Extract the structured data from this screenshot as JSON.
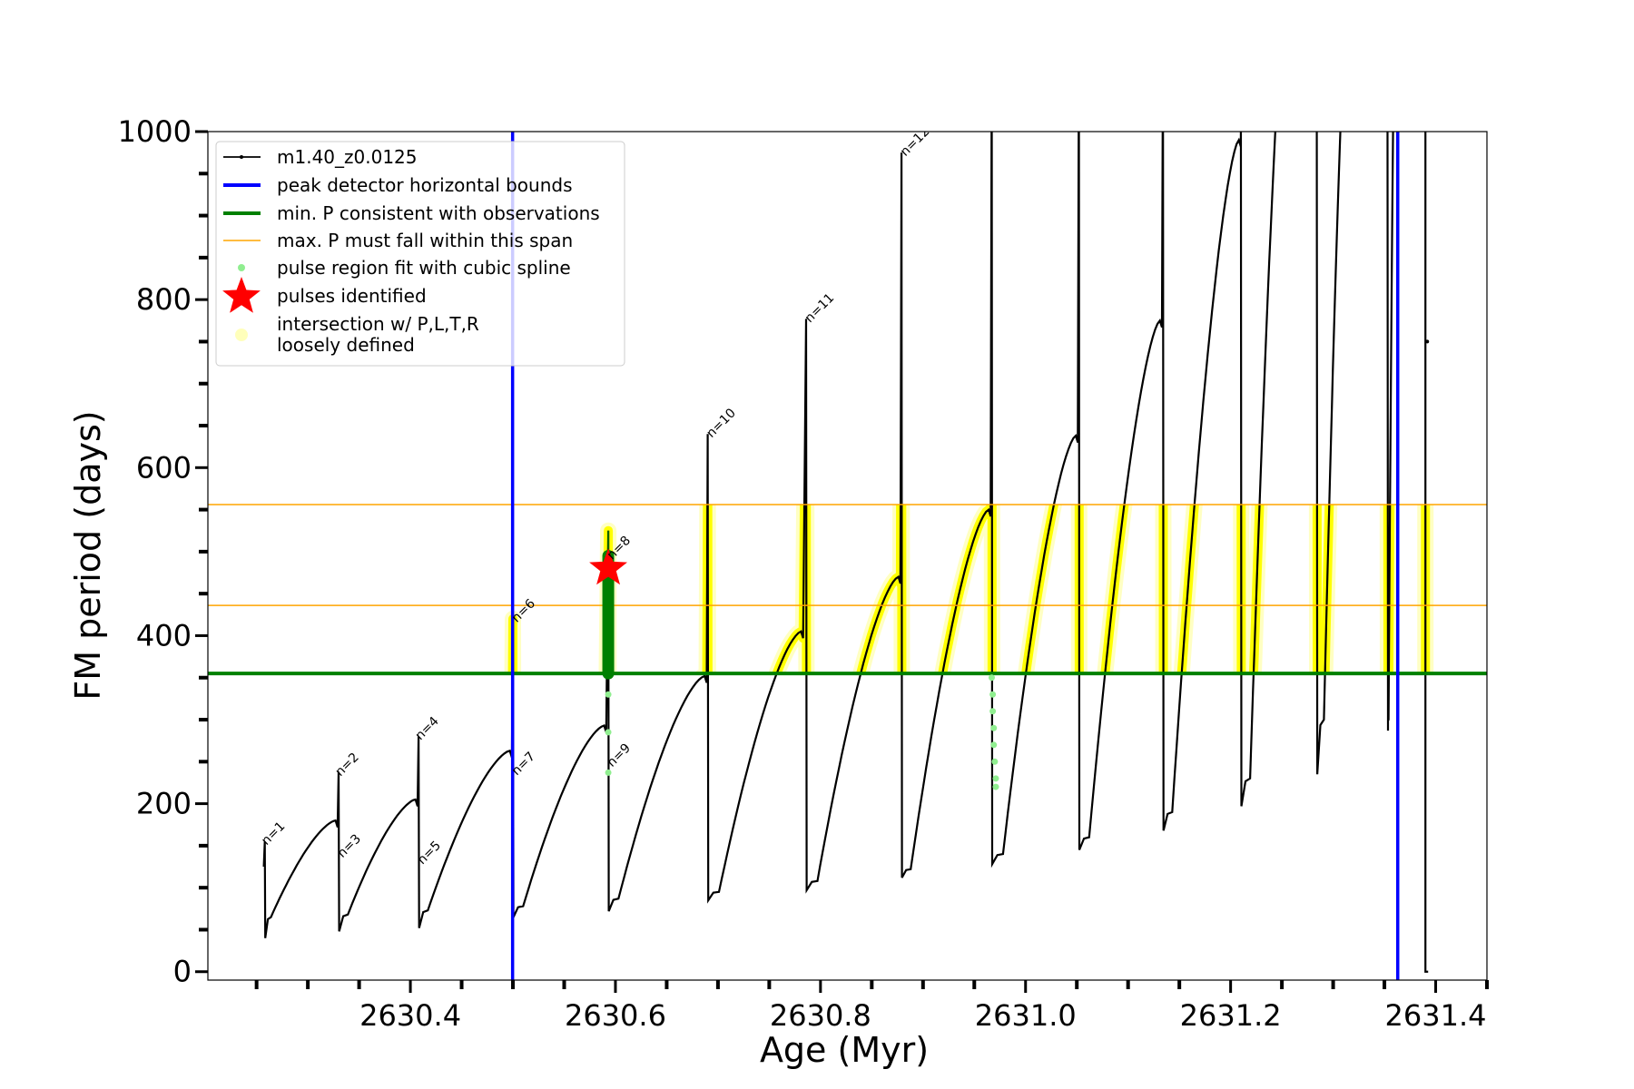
{
  "chart_data": {
    "type": "line",
    "xlabel": "Age (Myr)",
    "ylabel": "FM period (days)",
    "xlim": [
      2630.2025,
      2631.45
    ],
    "ylim": [
      -10,
      1000
    ],
    "xticks": [
      "2630.4",
      "2630.6",
      "2630.8",
      "2631.0",
      "2631.2",
      "2631.4"
    ],
    "xtick_values": [
      2630.4,
      2630.6,
      2630.8,
      2631.0,
      2631.2,
      2631.4
    ],
    "yticks": [
      "0",
      "200",
      "400",
      "600",
      "800",
      "1000"
    ],
    "ytick_values": [
      0,
      200,
      400,
      600,
      800,
      1000
    ],
    "legend_position": "top-left",
    "legend": [
      {
        "label": "m1.40_z0.0125",
        "color": "#000000",
        "kind": "line-marker"
      },
      {
        "label": "peak detector horizontal bounds",
        "color": "#0000ff",
        "kind": "thick-line"
      },
      {
        "label": "min. P consistent with observations",
        "color": "#008000",
        "kind": "thick-line"
      },
      {
        "label": "max. P must fall within this span",
        "color": "#ffa500",
        "kind": "thin-line"
      },
      {
        "label": "pulse region fit with cubic spline",
        "color": "#90ee90",
        "kind": "dot"
      },
      {
        "label": "pulses identified",
        "color": "#ff0000",
        "kind": "star"
      },
      {
        "label": "intersection w/ P,L,T,R",
        "label2": "loosely defined",
        "color": "#ffffaa",
        "kind": "circle"
      }
    ],
    "series_start": [
      2630.257,
      125
    ],
    "cycles": [
      {
        "pulse": 2630.258,
        "spike": 155,
        "drop": 40,
        "trough": [
          2630.264,
          65
        ],
        "peak": [
          2630.327,
          180
        ]
      },
      {
        "pulse": 2630.33,
        "spike": 238,
        "drop": 48,
        "trough": [
          2630.339,
          68
        ],
        "peak": [
          2630.405,
          205
        ]
      },
      {
        "pulse": 2630.408,
        "spike": 280,
        "drop": 52,
        "trough": [
          2630.417,
          73
        ],
        "peak": [
          2630.497,
          263
        ]
      },
      {
        "pulse": 2630.5,
        "spike": 420,
        "drop": 65,
        "trough": [
          2630.51,
          78
        ],
        "peak": [
          2630.589,
          293
        ]
      },
      {
        "pulse": 2630.593,
        "spike": 525,
        "drop": 72,
        "trough": [
          2630.603,
          87
        ],
        "peak": [
          2630.687,
          352
        ]
      },
      {
        "pulse": 2630.69,
        "spike": 640,
        "drop": 85,
        "trough": [
          2630.701,
          95
        ],
        "peak": [
          2630.781,
          405
        ]
      },
      {
        "pulse": 2630.786,
        "spike": 777,
        "drop": 97,
        "trough": [
          2630.797,
          108
        ],
        "peak": [
          2630.876,
          470
        ]
      },
      {
        "pulse": 2630.879,
        "spike": 975,
        "drop": 112,
        "trough": [
          2630.888,
          122
        ],
        "peak": [
          2630.964,
          550
        ]
      },
      {
        "pulse": 2630.967,
        "spike": 1100,
        "drop": 128,
        "trough": [
          2630.978,
          140
        ],
        "peak": [
          2631.049,
          638
        ]
      },
      {
        "pulse": 2631.052,
        "spike": 1100,
        "drop": 145,
        "trough": [
          2631.062,
          160
        ],
        "peak": [
          2631.131,
          775
        ]
      },
      {
        "pulse": 2631.134,
        "spike": 1100,
        "drop": 168,
        "trough": [
          2631.143,
          190
        ],
        "peak": [
          2631.208,
          990
        ]
      },
      {
        "pulse": 2631.21,
        "spike": 1100,
        "drop": 197,
        "trough": [
          2631.219,
          230
        ],
        "peak": [
          2631.262,
          1300
        ]
      },
      {
        "pulse": 2631.284,
        "spike": 1100,
        "drop": 235,
        "trough": [
          2631.291,
          300
        ],
        "peak": [
          2631.32,
          1300
        ]
      },
      {
        "pulse": 2631.353,
        "spike": 1100,
        "drop": 287,
        "trough": [
          2631.354,
          300
        ],
        "peak": [
          2631.362,
          1300
        ]
      }
    ],
    "final_drop": {
      "age": 2631.39,
      "from": 1100,
      "to": 0,
      "point": 750
    },
    "peak_detector_bounds": [
      2630.4997,
      2631.363
    ],
    "min_P": 355,
    "max_P_span": [
      436,
      556
    ],
    "pulse_identified": {
      "age": 2630.593,
      "P": 480
    },
    "identified_pulse_region": {
      "age": 2630.593,
      "P_range": [
        355,
        495
      ],
      "whisker_top": 525
    },
    "spline_points": [
      [
        2630.593,
        330
      ],
      [
        2630.593,
        285
      ],
      [
        2630.593,
        237
      ],
      [
        2630.967,
        350
      ],
      [
        2630.968,
        330
      ],
      [
        2630.968,
        310
      ],
      [
        2630.969,
        290
      ],
      [
        2630.969,
        270
      ],
      [
        2630.97,
        250
      ],
      [
        2630.971,
        230
      ],
      [
        2630.971,
        220
      ]
    ],
    "annotations": [
      {
        "text": "n=1",
        "age": 2630.258,
        "P": 150
      },
      {
        "text": "n=2",
        "age": 2630.33,
        "P": 232
      },
      {
        "text": "n=3",
        "age": 2630.332,
        "P": 135
      },
      {
        "text": "n=4",
        "age": 2630.408,
        "P": 275
      },
      {
        "text": "n=5",
        "age": 2630.41,
        "P": 127
      },
      {
        "text": "n=6",
        "age": 2630.502,
        "P": 415
      },
      {
        "text": "n=7",
        "age": 2630.502,
        "P": 233
      },
      {
        "text": "n=8",
        "age": 2630.595,
        "P": 490
      },
      {
        "text": "n=9",
        "age": 2630.595,
        "P": 243
      },
      {
        "text": "n=10",
        "age": 2630.692,
        "P": 635
      },
      {
        "text": "n=11",
        "age": 2630.788,
        "P": 772
      },
      {
        "text": "n=12",
        "age": 2630.881,
        "P": 970
      }
    ]
  }
}
